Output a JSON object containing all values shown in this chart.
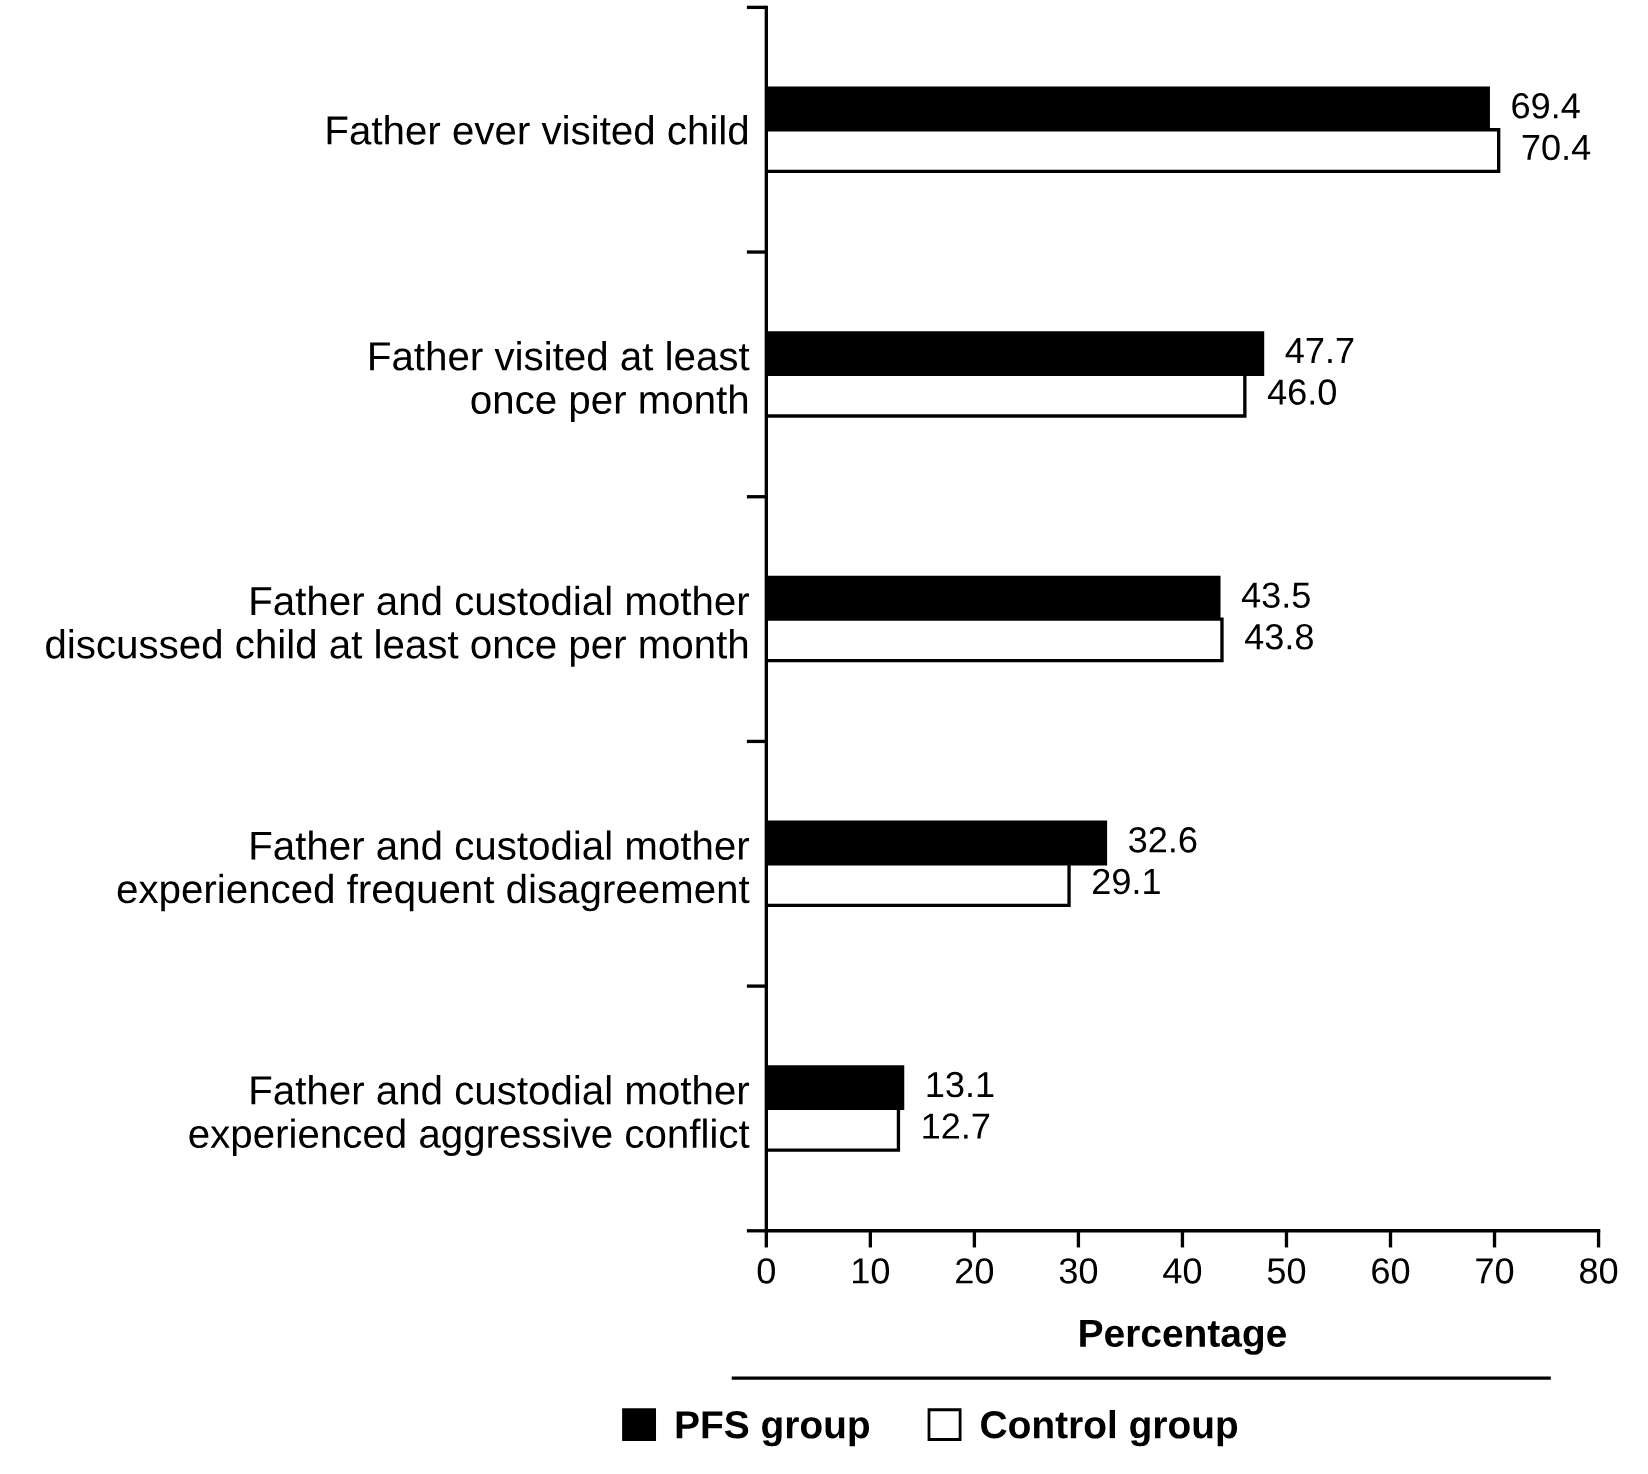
{
  "chart_data": {
    "type": "bar",
    "orientation": "horizontal",
    "xlabel": "Percentage",
    "categories": [
      "Father ever visited child",
      "Father visited at least\nonce per month",
      "Father and custodial mother\ndiscussed child at least once per month",
      "Father and custodial mother\nexperienced frequent disagreement",
      "Father and custodial mother\nexperienced aggressive conflict"
    ],
    "series": [
      {
        "name": "PFS group",
        "color": "#000000",
        "values": [
          69.4,
          47.7,
          43.5,
          32.6,
          13.1
        ],
        "value_labels": [
          "69.4",
          "47.7",
          "43.5",
          "32.6",
          "13.1"
        ]
      },
      {
        "name": "Control group",
        "color": "#ffffff",
        "values": [
          70.4,
          46.0,
          43.8,
          29.1,
          12.7
        ],
        "value_labels": [
          "70.4",
          "46.0",
          "43.8",
          "29.1",
          "12.7"
        ]
      }
    ],
    "xlim": [
      0,
      80
    ],
    "xticks": [
      0,
      10,
      20,
      30,
      40,
      50,
      60,
      70,
      80
    ],
    "grid": false,
    "legend": "bottom"
  }
}
